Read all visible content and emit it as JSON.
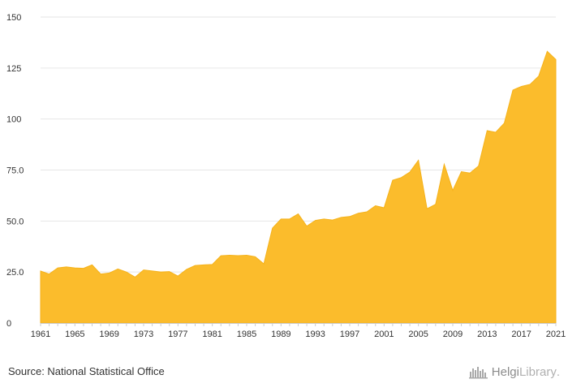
{
  "chart_data": {
    "type": "area",
    "title": "",
    "xlabel": "",
    "ylabel": "",
    "ylim": [
      0,
      150
    ],
    "xlim": [
      1961,
      2021
    ],
    "y_ticks": [
      "0",
      "25.0",
      "50.0",
      "75.0",
      "100",
      "125",
      "150"
    ],
    "y_tick_values": [
      0,
      25,
      50,
      75,
      100,
      125,
      150
    ],
    "x_ticks": [
      "1961",
      "1965",
      "1969",
      "1973",
      "1977",
      "1981",
      "1985",
      "1989",
      "1993",
      "1997",
      "2001",
      "2005",
      "2009",
      "2013",
      "2017",
      "2021"
    ],
    "grid": true,
    "color": "#fbbc2c",
    "x": [
      1961,
      1962,
      1963,
      1964,
      1965,
      1966,
      1967,
      1968,
      1969,
      1970,
      1971,
      1972,
      1973,
      1974,
      1975,
      1976,
      1977,
      1978,
      1979,
      1980,
      1981,
      1982,
      1983,
      1984,
      1985,
      1986,
      1987,
      1988,
      1989,
      1990,
      1991,
      1992,
      1993,
      1994,
      1995,
      1996,
      1997,
      1998,
      1999,
      2000,
      2001,
      2002,
      2003,
      2004,
      2005,
      2006,
      2007,
      2008,
      2009,
      2010,
      2011,
      2012,
      2013,
      2014,
      2015,
      2016,
      2017,
      2018,
      2019,
      2020,
      2021
    ],
    "values": [
      25.5,
      24,
      27,
      27.5,
      27,
      26.8,
      28.5,
      24,
      24.5,
      26.5,
      25,
      22.5,
      26,
      25.5,
      25,
      25.2,
      23,
      26.3,
      28.2,
      28.5,
      28.7,
      33,
      33.2,
      33,
      33.2,
      32.5,
      29,
      46.5,
      51,
      51,
      53.5,
      47.5,
      50.3,
      51,
      50.5,
      51.8,
      52.2,
      53.8,
      54.5,
      57.5,
      56.5,
      70,
      71.3,
      74,
      79.8,
      56,
      58.2,
      77.8,
      65,
      74.2,
      73.5,
      77,
      94.3,
      93.5,
      98,
      114.2,
      116,
      117,
      121,
      133.2,
      129.2
    ]
  },
  "footer": {
    "source": "Source: National Statistical Office",
    "brand_part1": "Helgi",
    "brand_part2": "Library",
    "brand_part3": "."
  }
}
